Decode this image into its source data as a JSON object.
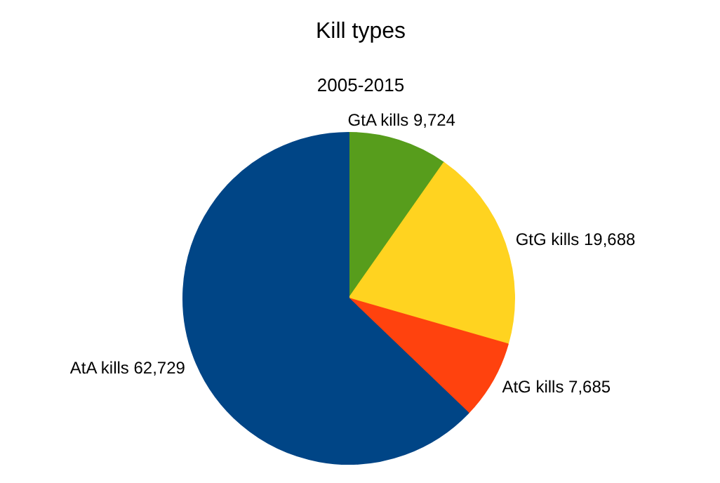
{
  "chart_data": {
    "type": "pie",
    "title": "Kill types",
    "subtitle": "2005-2015",
    "categories": [
      "GtA kills",
      "GtG kills",
      "AtG kills",
      "AtA kills"
    ],
    "values": [
      9724,
      19688,
      7685,
      62729
    ],
    "colors": [
      "#579d1c",
      "#ffd320",
      "#ff420e",
      "#004586"
    ],
    "value_labels": [
      "9,724",
      "19,688",
      "7,685",
      "62,729"
    ],
    "legend": false
  }
}
